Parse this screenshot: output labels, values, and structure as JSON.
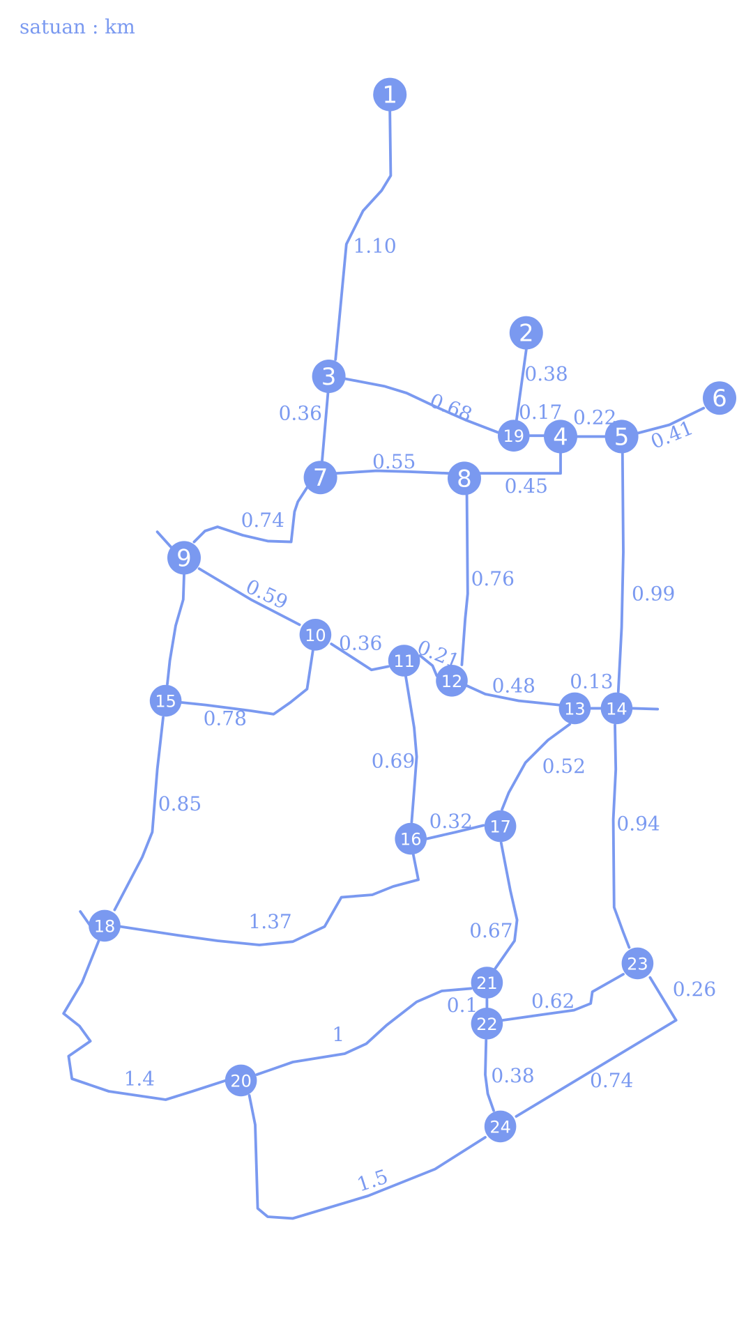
{
  "unit_label": "satuan : km",
  "colors": {
    "accent": "#7a99f0",
    "background": "#ffffff"
  },
  "nodes": [
    {
      "id": "1",
      "label": "1"
    },
    {
      "id": "2",
      "label": "2"
    },
    {
      "id": "3",
      "label": "3"
    },
    {
      "id": "4",
      "label": "4"
    },
    {
      "id": "5",
      "label": "5"
    },
    {
      "id": "6",
      "label": "6"
    },
    {
      "id": "7",
      "label": "7"
    },
    {
      "id": "8",
      "label": "8"
    },
    {
      "id": "9",
      "label": "9"
    },
    {
      "id": "10",
      "label": "10"
    },
    {
      "id": "11",
      "label": "11"
    },
    {
      "id": "12",
      "label": "12"
    },
    {
      "id": "13",
      "label": "13"
    },
    {
      "id": "14",
      "label": "14"
    },
    {
      "id": "15",
      "label": "15"
    },
    {
      "id": "16",
      "label": "16"
    },
    {
      "id": "17",
      "label": "17"
    },
    {
      "id": "18",
      "label": "18"
    },
    {
      "id": "19",
      "label": "19"
    },
    {
      "id": "20",
      "label": "20"
    },
    {
      "id": "21",
      "label": "21"
    },
    {
      "id": "22",
      "label": "22"
    },
    {
      "id": "23",
      "label": "23"
    },
    {
      "id": "24",
      "label": "24"
    }
  ],
  "edges": [
    {
      "from": "1",
      "to": "3",
      "label": "1.10"
    },
    {
      "from": "2",
      "to": "19",
      "label": "0.38"
    },
    {
      "from": "3",
      "to": "19",
      "label": "0.68"
    },
    {
      "from": "3",
      "to": "7",
      "label": "0.36"
    },
    {
      "from": "19",
      "to": "4",
      "label": "0.17"
    },
    {
      "from": "4",
      "to": "5",
      "label": "0.22"
    },
    {
      "from": "5",
      "to": "6",
      "label": "0.41"
    },
    {
      "from": "7",
      "to": "8",
      "label": "0.55"
    },
    {
      "from": "8",
      "to": "4",
      "label": "0.45"
    },
    {
      "from": "7",
      "to": "9",
      "label": "0.74"
    },
    {
      "from": "8",
      "to": "12",
      "label": "0.76"
    },
    {
      "from": "5",
      "to": "14",
      "label": "0.99"
    },
    {
      "from": "9",
      "to": "10",
      "label": "0.59"
    },
    {
      "from": "10",
      "to": "11",
      "label": "0.36"
    },
    {
      "from": "11",
      "to": "12",
      "label": "0.21"
    },
    {
      "from": "12",
      "to": "13",
      "label": "0.48"
    },
    {
      "from": "13",
      "to": "14",
      "label": "0.13"
    },
    {
      "from": "10",
      "to": "15",
      "label": "0.78"
    },
    {
      "from": "11",
      "to": "16",
      "label": "0.69"
    },
    {
      "from": "13",
      "to": "17",
      "label": "0.52"
    },
    {
      "from": "16",
      "to": "17",
      "label": "0.32"
    },
    {
      "from": "15",
      "to": "18",
      "label": "0.85"
    },
    {
      "from": "14",
      "to": "23",
      "label": "0.94"
    },
    {
      "from": "18",
      "to": "16",
      "label": "1.37"
    },
    {
      "from": "17",
      "to": "21",
      "label": "0.67"
    },
    {
      "from": "21",
      "to": "22",
      "label": "0.1"
    },
    {
      "from": "22",
      "to": "23",
      "label": "0.62"
    },
    {
      "from": "23",
      "to": "24",
      "label": "0.26"
    },
    {
      "from": "21",
      "to": "20",
      "label": "1"
    },
    {
      "from": "18",
      "to": "20",
      "label": "1.4"
    },
    {
      "from": "22",
      "to": "24",
      "label": "0.38"
    },
    {
      "from": "24",
      "to": "23",
      "label": "0.74"
    },
    {
      "from": "20",
      "to": "24",
      "label": "1.5"
    }
  ]
}
